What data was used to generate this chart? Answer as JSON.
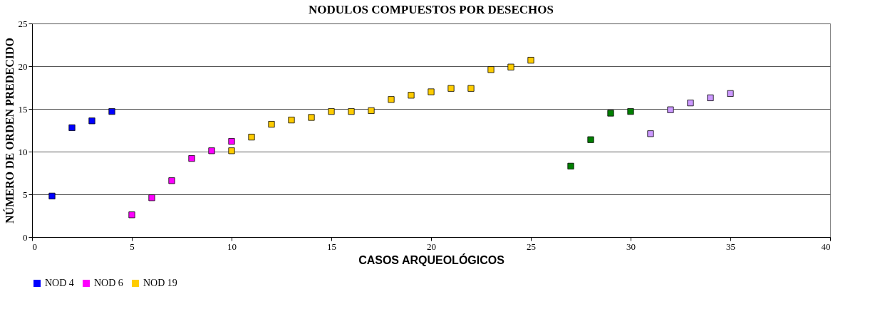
{
  "chart_data": {
    "type": "scatter",
    "title": "NODULOS COMPUESTOS POR DESECHOS",
    "xlabel": "CASOS ARQUEOLÓGICOS",
    "ylabel": "NÚMERO DE ORDEN PREDECIDO",
    "xlim": [
      0,
      40
    ],
    "xticks": [
      0,
      5,
      10,
      15,
      20,
      25,
      30,
      35,
      40
    ],
    "ylim": [
      0,
      25
    ],
    "yticks": [
      0,
      5,
      10,
      15,
      20,
      25
    ],
    "grid": "y",
    "legend": "bottom",
    "marker": "square",
    "series": [
      {
        "name": "NOD 4",
        "color": "#0000ff",
        "x": [
          1,
          2,
          3,
          4
        ],
        "values": [
          4.8,
          12.8,
          13.6,
          14.7
        ]
      },
      {
        "name": "NOD 6",
        "color": "#ff00ff",
        "x": [
          5,
          6,
          7,
          8,
          9,
          10
        ],
        "values": [
          2.6,
          4.6,
          6.6,
          9.2,
          10.1,
          11.2
        ]
      },
      {
        "name": "NOD 19",
        "color": "#ffcc00",
        "x": [
          10,
          11,
          12,
          13,
          14,
          15,
          16,
          17,
          18,
          19,
          20,
          21,
          22,
          23,
          24,
          25
        ],
        "values": [
          10.1,
          11.7,
          13.2,
          13.7,
          14.0,
          14.7,
          14.7,
          14.8,
          16.1,
          16.6,
          17.0,
          17.4,
          17.4,
          19.6,
          19.9,
          20.7
        ]
      },
      {
        "color": "#008000",
        "x": [
          27,
          28,
          29,
          30
        ],
        "values": [
          8.3,
          11.4,
          14.5,
          14.7
        ]
      },
      {
        "color": "#cc99ff",
        "x": [
          31,
          32,
          33,
          34,
          35
        ],
        "values": [
          12.1,
          14.9,
          15.7,
          16.3,
          16.8
        ]
      }
    ]
  }
}
